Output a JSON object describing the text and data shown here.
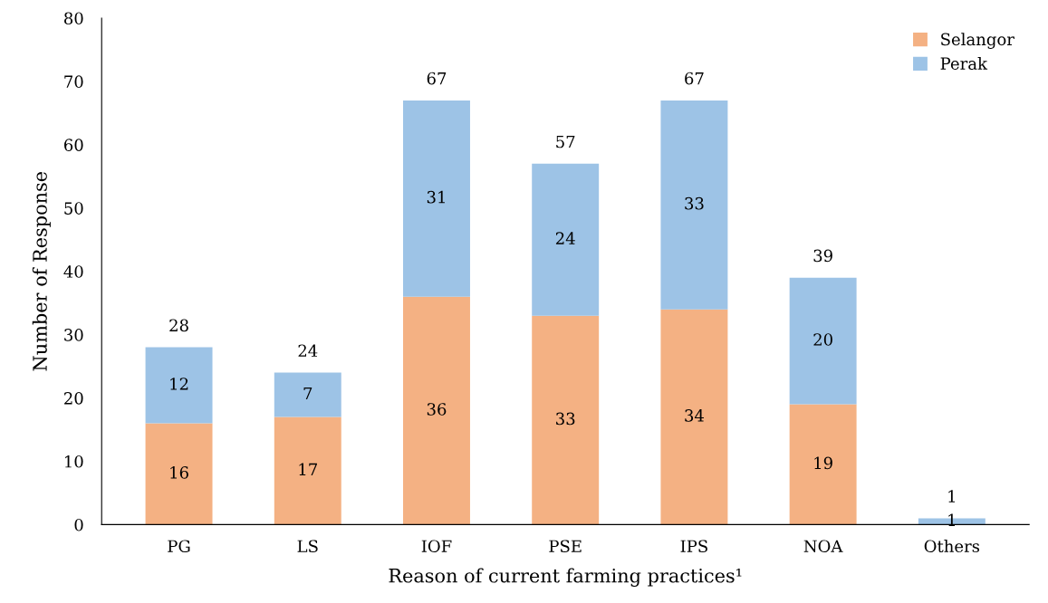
{
  "chart_data": {
    "type": "bar",
    "stacked": true,
    "xlabel": "Reason of current farming practices¹",
    "ylabel": "Number of Response",
    "categories": [
      "PG",
      "LS",
      "IOF",
      "PSE",
      "IPS",
      "NOA",
      "Others"
    ],
    "series": [
      {
        "name": "Selangor",
        "color": "#f4b183",
        "values": [
          16,
          17,
          36,
          33,
          34,
          19,
          0
        ],
        "value_labels": [
          "16",
          "17",
          "36",
          "33",
          "34",
          "19",
          null
        ]
      },
      {
        "name": "Perak",
        "color": "#9dc3e6",
        "values": [
          12,
          7,
          31,
          24,
          33,
          20,
          1
        ],
        "value_labels": [
          "12",
          "7",
          "31",
          "24",
          "33",
          "20",
          "1"
        ]
      }
    ],
    "totals": [
      "28",
      "24",
      "67",
      "57",
      "67",
      "39",
      "1"
    ],
    "ylim": [
      0,
      80
    ],
    "yticks": [
      0,
      10,
      20,
      30,
      40,
      50,
      60,
      70,
      80
    ],
    "grid": false,
    "legend": "top right"
  }
}
